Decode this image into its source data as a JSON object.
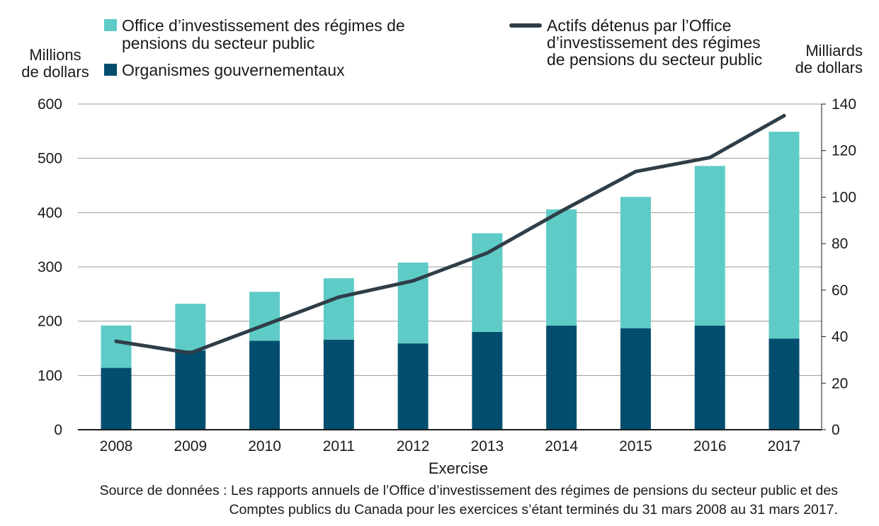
{
  "chart_data": {
    "type": "bar",
    "stacked": true,
    "categories": [
      "2008",
      "2009",
      "2010",
      "2011",
      "2012",
      "2013",
      "2014",
      "2015",
      "2016",
      "2017"
    ],
    "series": [
      {
        "name": "Organismes gouvernementaux",
        "type": "bar",
        "axis": "left",
        "color": "#034e6e",
        "values": [
          114,
          146,
          164,
          166,
          159,
          180,
          192,
          187,
          192,
          168
        ]
      },
      {
        "name": "Office d’investissement des régimes de pensions du secteur public",
        "type": "bar",
        "axis": "left",
        "color": "#5ecbc7",
        "values": [
          78,
          86,
          90,
          113,
          149,
          182,
          214,
          242,
          294,
          381
        ]
      },
      {
        "name": "Actifs détenus par l’Office d’investissement des régimes de pensions du secteur public",
        "type": "line",
        "axis": "right",
        "color": "#2f3e48",
        "values": [
          38,
          33,
          45,
          57,
          64,
          76,
          94,
          111,
          117,
          135
        ]
      }
    ],
    "legend": {
      "bars": [
        {
          "lines": [
            "Office d’investissement des régimes de",
            "pensions du secteur public"
          ],
          "color": "#5ecbc7"
        },
        {
          "lines": [
            "Organismes gouvernementaux"
          ],
          "color": "#034e6e"
        }
      ],
      "line": {
        "lines": [
          "Actifs détenus par l’Office",
          "d’investissement des régimes",
          "de pensions du secteur public"
        ],
        "color": "#2f3e48"
      }
    },
    "y_left": {
      "title_lines": [
        "Millions",
        "de dollars"
      ],
      "min": 0,
      "max": 600,
      "ticks": [
        0,
        100,
        200,
        300,
        400,
        500,
        600
      ]
    },
    "y_right": {
      "title_lines": [
        "Milliards",
        "de dollars"
      ],
      "min": 0,
      "max": 140,
      "ticks": [
        0,
        20,
        40,
        60,
        80,
        100,
        120,
        140
      ]
    },
    "xlabel": "Exercise",
    "grid": true
  },
  "source": {
    "line1": "Source de données : Les rapports annuels de l’Office d’investissement des régimes de pensions du secteur public et des",
    "line2": "Comptes publics du Canada pour les exercices s’étant terminés du 31 mars 2008 au 31 mars 2017."
  }
}
